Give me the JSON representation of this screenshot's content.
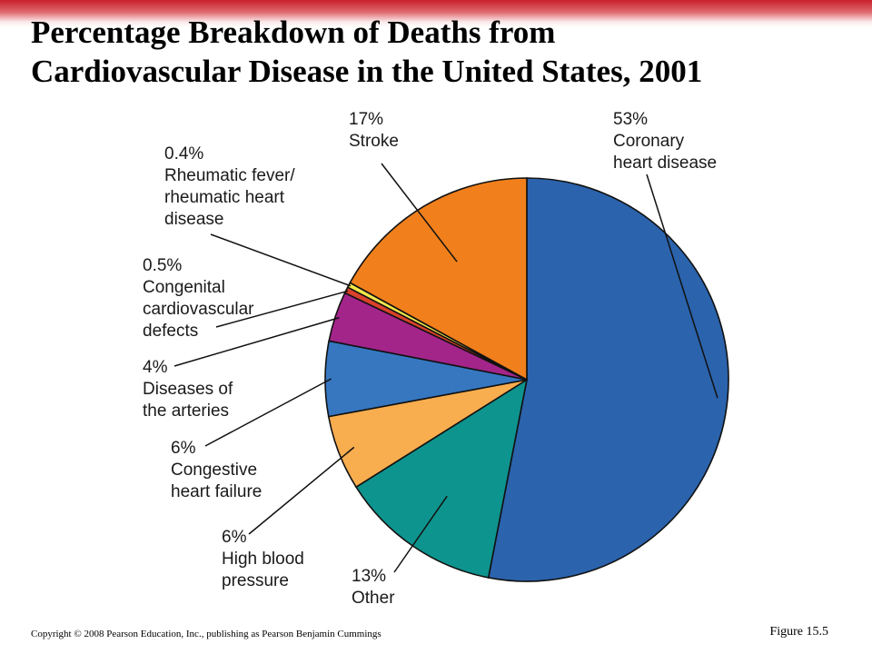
{
  "slide": {
    "title_line1": "Percentage Breakdown of Deaths from",
    "title_line2": "Cardiovascular Disease in the United States, 2001",
    "copyright": "Copyright © 2008 Pearson Education, Inc., publishing as Pearson Benjamin Cummings",
    "figure": "Figure 15.5",
    "accent_color": "#c8202a"
  },
  "chart_data": {
    "type": "pie",
    "title": "",
    "slices": [
      {
        "label_lines": [
          "53%",
          "Coronary",
          "heart disease"
        ],
        "value": 53,
        "color": "#2b63ad"
      },
      {
        "label_lines": [
          "13%",
          "Other"
        ],
        "value": 13,
        "color": "#0e948e"
      },
      {
        "label_lines": [
          "6%",
          "High blood",
          "pressure"
        ],
        "value": 6,
        "color": "#f8ad4f"
      },
      {
        "label_lines": [
          "6%",
          "Congestive",
          "heart failure"
        ],
        "value": 6,
        "color": "#3677c0"
      },
      {
        "label_lines": [
          "4%",
          "Diseases of",
          "the arteries"
        ],
        "value": 4,
        "color": "#a3258a"
      },
      {
        "label_lines": [
          "0.5%",
          "Congenital",
          "cardiovascular",
          "defects"
        ],
        "value": 0.5,
        "color": "#d9412a"
      },
      {
        "label_lines": [
          "0.4%",
          "Rheumatic fever/",
          "rheumatic heart",
          "disease"
        ],
        "value": 0.4,
        "color": "#f3e84a"
      },
      {
        "label_lines": [
          "17%",
          "Stroke"
        ],
        "value": 17,
        "color": "#f07f1c"
      }
    ]
  }
}
